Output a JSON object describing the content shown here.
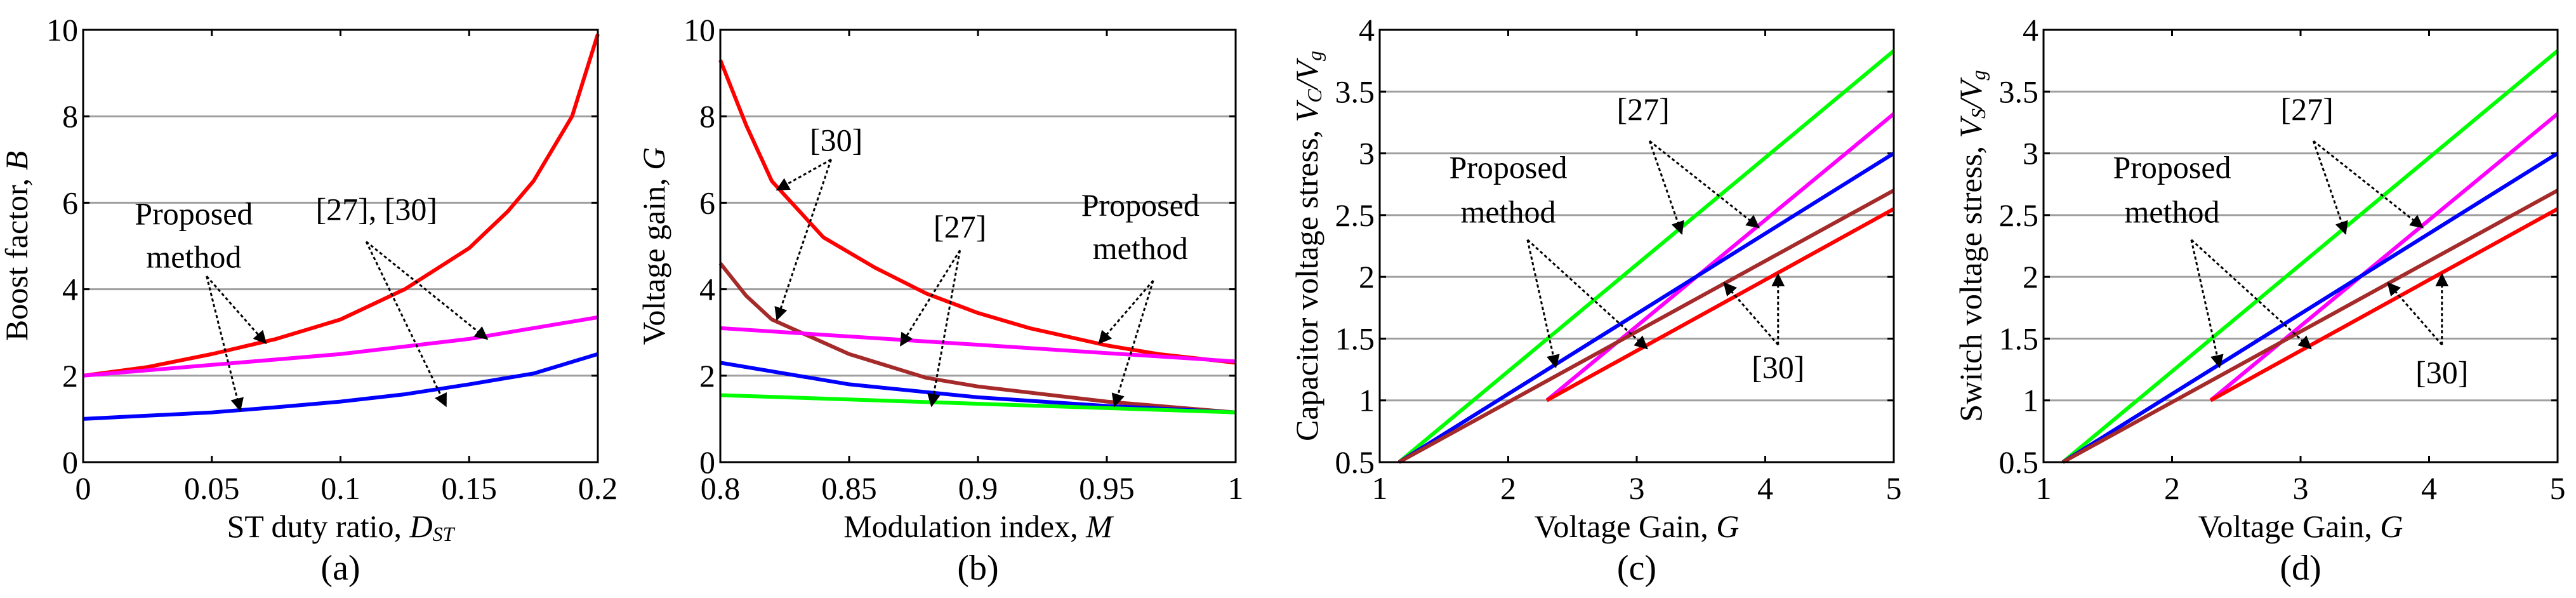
{
  "colors": {
    "red": "#ff0000",
    "magenta": "#ff00ff",
    "blue": "#0000ff",
    "green": "#00ff00",
    "brown": "#a52a2a",
    "grid": "#a0a0a0"
  },
  "chart_data": [
    {
      "type": "line",
      "caption": "(a)",
      "xlabel": "ST duty ratio, ",
      "xlabel_var": "D",
      "xlabel_sub": "ST",
      "ylabel": "Boost factor, ",
      "ylabel_var": "B",
      "ylabel_sub": "",
      "ylabel_var2": "",
      "ylabel_sub2": "",
      "xlim": [
        0,
        0.2
      ],
      "ylim": [
        0,
        10
      ],
      "xticks": [
        "0",
        "0.05",
        "0.1",
        "0.15",
        "0.2"
      ],
      "xtick_values": [
        0,
        0.05,
        0.1,
        0.15,
        0.2
      ],
      "yticks": [
        "0",
        "2",
        "4",
        "6",
        "8",
        "10"
      ],
      "ytick_values": [
        0,
        2,
        4,
        6,
        8,
        10
      ],
      "grid": "y",
      "series": [
        {
          "name": "[27], [30] (upper)",
          "color": "red",
          "x": [
            0,
            0.025,
            0.05,
            0.075,
            0.1,
            0.125,
            0.15,
            0.165,
            0.175,
            0.19,
            0.2
          ],
          "y": [
            2,
            2.2,
            2.5,
            2.85,
            3.3,
            4.0,
            4.95,
            5.8,
            6.5,
            8.0,
            9.9
          ]
        },
        {
          "name": "[27], [30] (lower)",
          "color": "magenta",
          "x": [
            0,
            0.05,
            0.1,
            0.15,
            0.2
          ],
          "y": [
            2,
            2.25,
            2.5,
            2.85,
            3.35
          ]
        },
        {
          "name": "Proposed method",
          "color": "blue",
          "x": [
            0,
            0.05,
            0.075,
            0.1,
            0.125,
            0.15,
            0.175,
            0.2
          ],
          "y": [
            1,
            1.15,
            1.27,
            1.4,
            1.57,
            1.8,
            2.05,
            2.5
          ]
        }
      ],
      "annotations": [
        {
          "lines": [
            "Proposed",
            "method"
          ]
        },
        {
          "lines": [
            "[27], [30]"
          ]
        }
      ]
    },
    {
      "type": "line",
      "caption": "(b)",
      "xlabel": "Modulation index, ",
      "xlabel_var": "M",
      "xlabel_sub": "",
      "ylabel": "Voltage gain, ",
      "ylabel_var": "G",
      "ylabel_sub": "",
      "ylabel_var2": "",
      "ylabel_sub2": "",
      "xlim": [
        0.8,
        1
      ],
      "ylim": [
        0,
        10
      ],
      "xticks": [
        "0.8",
        "0.85",
        "0.9",
        "0.95",
        "1"
      ],
      "xtick_values": [
        0.8,
        0.85,
        0.9,
        0.95,
        1
      ],
      "yticks": [
        "0",
        "2",
        "4",
        "6",
        "8",
        "10"
      ],
      "ytick_values": [
        0,
        2,
        4,
        6,
        8,
        10
      ],
      "grid": "y",
      "series": [
        {
          "name": "[30] upper",
          "color": "red",
          "x": [
            0.8,
            0.81,
            0.82,
            0.84,
            0.86,
            0.88,
            0.9,
            0.92,
            0.95,
            0.97,
            1
          ],
          "y": [
            9.3,
            7.8,
            6.5,
            5.2,
            4.5,
            3.9,
            3.45,
            3.1,
            2.7,
            2.5,
            2.3
          ]
        },
        {
          "name": "[30] lower",
          "color": "brown",
          "x": [
            0.8,
            0.81,
            0.82,
            0.85,
            0.88,
            0.9,
            0.95,
            1
          ],
          "y": [
            4.6,
            3.85,
            3.3,
            2.5,
            1.95,
            1.75,
            1.4,
            1.15
          ]
        },
        {
          "name": "[27] upper",
          "color": "magenta",
          "x": [
            0.8,
            1
          ],
          "y": [
            3.1,
            2.33
          ]
        },
        {
          "name": "Proposed method",
          "color": "blue",
          "x": [
            0.8,
            0.85,
            0.9,
            0.95,
            1
          ],
          "y": [
            2.3,
            1.8,
            1.5,
            1.3,
            1.15
          ]
        },
        {
          "name": "[27] lower",
          "color": "green",
          "x": [
            0.8,
            1
          ],
          "y": [
            1.55,
            1.15
          ]
        }
      ],
      "annotations": [
        {
          "lines": [
            "[30]"
          ]
        },
        {
          "lines": [
            "[27]"
          ]
        },
        {
          "lines": [
            "Proposed",
            "method"
          ]
        }
      ]
    },
    {
      "type": "line",
      "caption": "(c)",
      "xlabel": "Voltage Gain, ",
      "xlabel_var": "G",
      "xlabel_sub": "",
      "ylabel": "Capacitor voltage stress, ",
      "ylabel_var": "V",
      "ylabel_sub": "C",
      "ylabel_var2": "/V",
      "ylabel_sub2": "g",
      "xlim": [
        1,
        5
      ],
      "ylim": [
        0.5,
        4
      ],
      "xticks": [
        "1",
        "2",
        "3",
        "4",
        "5"
      ],
      "xtick_values": [
        1,
        2,
        3,
        4,
        5
      ],
      "yticks": [
        "0.5",
        "1",
        "1.5",
        "2",
        "2.5",
        "3",
        "3.5",
        "4"
      ],
      "ytick_values": [
        0.5,
        1,
        1.5,
        2,
        2.5,
        3,
        3.5,
        4
      ],
      "grid": "y",
      "series": [
        {
          "name": "[27] green",
          "color": "green",
          "x": [
            1.15,
            5
          ],
          "y": [
            0.5,
            3.83
          ]
        },
        {
          "name": "[27] magenta",
          "color": "magenta",
          "x": [
            2.3,
            5
          ],
          "y": [
            1.0,
            3.32
          ]
        },
        {
          "name": "Proposed method",
          "color": "blue",
          "x": [
            1.15,
            5
          ],
          "y": [
            0.5,
            3.0
          ]
        },
        {
          "name": "[30] brown",
          "color": "brown",
          "x": [
            1.15,
            5
          ],
          "y": [
            0.5,
            2.7
          ]
        },
        {
          "name": "[30] red",
          "color": "red",
          "x": [
            2.3,
            5
          ],
          "y": [
            1.0,
            2.55
          ]
        }
      ],
      "annotations": [
        {
          "lines": [
            "[27]"
          ]
        },
        {
          "lines": [
            "Proposed",
            "method"
          ]
        },
        {
          "lines": [
            "[30]"
          ]
        }
      ]
    },
    {
      "type": "line",
      "caption": "(d)",
      "xlabel": "Voltage Gain, ",
      "xlabel_var": "G",
      "xlabel_sub": "",
      "ylabel": "Switch voltage stress, ",
      "ylabel_var": "V",
      "ylabel_sub": "S",
      "ylabel_var2": "/V",
      "ylabel_sub2": "g",
      "xlim": [
        1,
        5
      ],
      "ylim": [
        0.5,
        4
      ],
      "xticks": [
        "1",
        "2",
        "3",
        "4",
        "5"
      ],
      "xtick_values": [
        1,
        2,
        3,
        4,
        5
      ],
      "yticks": [
        "0.5",
        "1",
        "1.5",
        "2",
        "2.5",
        "3",
        "3.5",
        "4"
      ],
      "ytick_values": [
        0.5,
        1,
        1.5,
        2,
        2.5,
        3,
        3.5,
        4
      ],
      "grid": "y",
      "series": [
        {
          "name": "[27] green",
          "color": "green",
          "x": [
            1.15,
            5
          ],
          "y": [
            0.5,
            3.83
          ]
        },
        {
          "name": "[27] magenta",
          "color": "magenta",
          "x": [
            2.3,
            5
          ],
          "y": [
            1.0,
            3.32
          ]
        },
        {
          "name": "Proposed method",
          "color": "blue",
          "x": [
            1.15,
            5
          ],
          "y": [
            0.5,
            3.0
          ]
        },
        {
          "name": "[30] brown",
          "color": "brown",
          "x": [
            1.15,
            5
          ],
          "y": [
            0.5,
            2.7
          ]
        },
        {
          "name": "[30] red",
          "color": "red",
          "x": [
            2.3,
            5
          ],
          "y": [
            1.0,
            2.55
          ]
        }
      ],
      "annotations": [
        {
          "lines": [
            "[27]"
          ]
        },
        {
          "lines": [
            "Proposed",
            "method"
          ]
        },
        {
          "lines": [
            "[30]"
          ]
        }
      ]
    }
  ]
}
